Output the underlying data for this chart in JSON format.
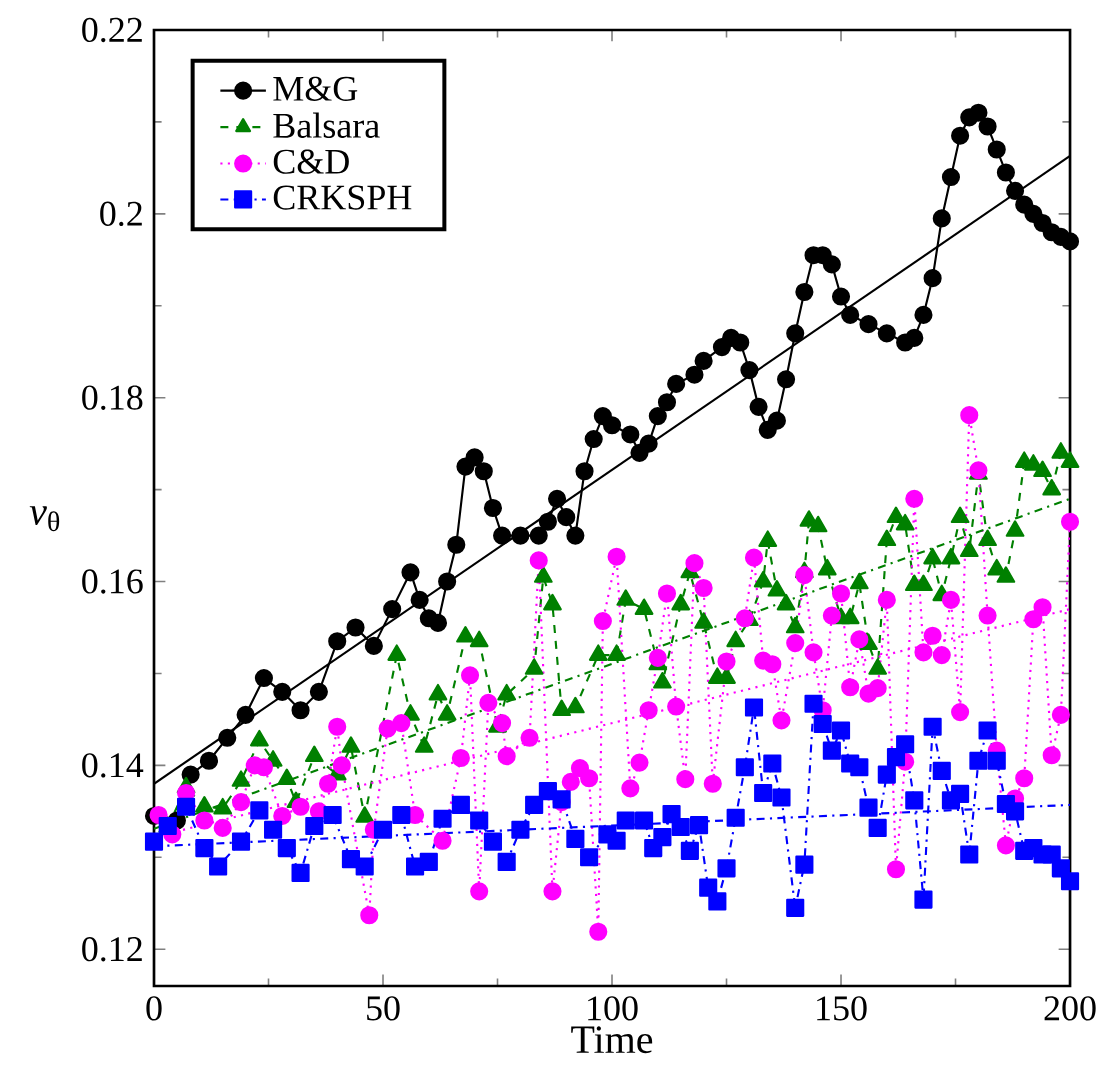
{
  "chart_data": {
    "type": "line",
    "xlabel": "Time",
    "ylabel": "*v*$_{θ}$",
    "xlim": [
      0,
      200
    ],
    "ylim": [
      0.116,
      0.22
    ],
    "xticks": [
      0,
      50,
      100,
      150,
      200
    ],
    "yticks": [
      0.12,
      0.14,
      0.16,
      0.18,
      0.2,
      0.22
    ],
    "grid": false,
    "legend": "top left",
    "series": [
      {
        "name": "M&G",
        "color": "#000000",
        "marker": "circle",
        "line_style": "solid",
        "x": [
          0,
          5,
          8,
          12,
          16,
          20,
          24,
          28,
          32,
          36,
          40,
          44,
          48,
          52,
          56,
          58,
          60,
          62,
          64,
          66,
          68,
          70,
          72,
          74,
          76,
          80,
          84,
          86,
          88,
          90,
          92,
          94,
          96,
          98,
          100,
          104,
          106,
          108,
          110,
          112,
          114,
          118,
          120,
          124,
          126,
          128,
          130,
          132,
          134,
          136,
          138,
          140,
          142,
          144,
          146,
          148,
          150,
          152,
          156,
          160,
          164,
          166,
          168,
          170,
          172,
          174,
          176,
          178,
          180,
          182,
          184,
          186,
          188,
          190,
          192,
          194,
          196,
          198,
          200
        ],
        "values": [
          0.1345,
          0.134,
          0.139,
          0.1405,
          0.143,
          0.1455,
          0.1495,
          0.148,
          0.146,
          0.148,
          0.1535,
          0.155,
          0.153,
          0.157,
          0.161,
          0.158,
          0.156,
          0.1555,
          0.16,
          0.164,
          0.1725,
          0.1735,
          0.172,
          0.168,
          0.165,
          0.165,
          0.165,
          0.1665,
          0.169,
          0.167,
          0.165,
          0.172,
          0.1755,
          0.178,
          0.177,
          0.176,
          0.174,
          0.175,
          0.178,
          0.1795,
          0.1815,
          0.1825,
          0.184,
          0.1855,
          0.1865,
          0.186,
          0.183,
          0.179,
          0.1765,
          0.1775,
          0.182,
          0.187,
          0.1915,
          0.1955,
          0.1955,
          0.1945,
          0.191,
          0.189,
          0.188,
          0.187,
          0.186,
          0.1865,
          0.189,
          0.193,
          0.1995,
          0.204,
          0.2085,
          0.2105,
          0.211,
          0.2095,
          0.207,
          0.2045,
          0.2025,
          0.201,
          0.2,
          0.199,
          0.198,
          0.1975,
          0.197
        ]
      },
      {
        "name": "Balsara",
        "color": "#008000",
        "marker": "triangle",
        "line_style": "dashed",
        "x": [
          3,
          7,
          11,
          15,
          19,
          23,
          26,
          29,
          31,
          35,
          40,
          43,
          46,
          53,
          56,
          59,
          62,
          64,
          68,
          71,
          75,
          77,
          83,
          85,
          87,
          89,
          92,
          97,
          101,
          103,
          107,
          110,
          111,
          115,
          117,
          120,
          123,
          125,
          127,
          130,
          133,
          134,
          136,
          138,
          140,
          142,
          143,
          145,
          147,
          150,
          152,
          154,
          156,
          158,
          160,
          162,
          164,
          166,
          168,
          170,
          172,
          174,
          176,
          178,
          180,
          182,
          184,
          186,
          188,
          190,
          192,
          194,
          196,
          198,
          200
        ],
        "values": [
          0.1333,
          0.1376,
          0.1355,
          0.1353,
          0.1383,
          0.1427,
          0.1405,
          0.1385,
          0.136,
          0.141,
          0.139,
          0.142,
          0.1344,
          0.152,
          0.1455,
          0.142,
          0.1477,
          0.1455,
          0.154,
          0.1535,
          0.1442,
          0.1477,
          0.1505,
          0.1605,
          0.1575,
          0.146,
          0.1463,
          0.152,
          0.152,
          0.158,
          0.157,
          0.151,
          0.149,
          0.1575,
          0.161,
          0.1555,
          0.1495,
          0.1495,
          0.1535,
          0.1558,
          0.16,
          0.1644,
          0.159,
          0.1575,
          0.155,
          0.161,
          0.1666,
          0.166,
          0.1613,
          0.156,
          0.156,
          0.1598,
          0.1532,
          0.1505,
          0.1645,
          0.167,
          0.1662,
          0.1596,
          0.1596,
          0.1625,
          0.1585,
          0.1625,
          0.167,
          0.1633,
          0.1717,
          0.1645,
          0.1613,
          0.1605,
          0.1655,
          0.173,
          0.1727,
          0.172,
          0.17,
          0.174,
          0.173
        ]
      },
      {
        "name": "C&D",
        "color": "#ff00ff",
        "marker": "circle",
        "line_style": "dotted",
        "x": [
          1,
          4,
          7,
          11,
          15,
          19,
          22,
          24,
          28,
          32,
          36,
          38,
          40,
          41,
          47,
          48,
          51,
          54,
          57,
          58,
          63,
          67,
          69,
          71,
          73,
          76,
          77,
          79,
          82,
          84,
          87,
          89,
          91,
          93,
          95,
          97,
          98,
          101,
          104,
          106,
          108,
          110,
          112,
          114,
          116,
          118,
          120,
          122,
          125,
          129,
          131,
          133,
          135,
          137,
          140,
          142,
          144,
          146,
          148,
          150,
          152,
          154,
          156,
          158,
          160,
          162,
          164,
          166,
          168,
          170,
          172,
          174,
          176,
          178,
          180,
          182,
          184,
          186,
          188,
          190,
          192,
          194,
          196,
          198,
          200
        ],
        "values": [
          0.1346,
          0.1325,
          0.137,
          0.134,
          0.1332,
          0.136,
          0.14,
          0.1398,
          0.1345,
          0.1355,
          0.135,
          0.138,
          0.1442,
          0.14,
          0.1237,
          0.133,
          0.144,
          0.1446,
          0.1346,
          null,
          0.1318,
          0.1408,
          0.1498,
          0.1263,
          0.1468,
          0.1446,
          0.141,
          null,
          0.143,
          0.1623,
          0.1263,
          0.136,
          0.1382,
          0.1397,
          0.1386,
          0.1219,
          0.1557,
          0.1627,
          0.1375,
          0.1403,
          0.146,
          0.1517,
          0.1587,
          0.1464,
          0.1385,
          0.162,
          0.1593,
          0.138,
          0.1513,
          0.156,
          0.1626,
          0.1514,
          0.151,
          0.1449,
          0.1533,
          0.1607,
          0.1523,
          0.146,
          0.1563,
          0.1587,
          0.1485,
          0.1537,
          0.1478,
          0.1484,
          0.158,
          0.1287,
          0.1404,
          0.169,
          0.1523,
          0.1541,
          0.152,
          0.158,
          0.1458,
          0.1781,
          0.1721,
          0.1563,
          0.1416,
          0.1313,
          0.1364,
          0.1386,
          0.1559,
          0.1572,
          0.1411,
          0.1455,
          0.1665
        ]
      },
      {
        "name": "CRKSPH",
        "color": "#0000ff",
        "marker": "square",
        "line_style": "dashdot",
        "x": [
          0,
          3,
          7,
          11,
          14,
          19,
          23,
          26,
          29,
          32,
          35,
          39,
          43,
          46,
          50,
          54,
          57,
          60,
          63,
          67,
          71,
          74,
          77,
          80,
          83,
          86,
          89,
          92,
          95,
          99,
          101,
          103,
          107,
          109,
          111,
          113,
          115,
          117,
          119,
          121,
          123,
          125,
          127,
          129,
          131,
          133,
          135,
          137,
          140,
          142,
          144,
          146,
          148,
          150,
          152,
          154,
          156,
          158,
          160,
          162,
          164,
          166,
          168,
          170,
          172,
          174,
          176,
          178,
          180,
          182,
          184,
          186,
          188,
          190,
          192,
          194,
          196,
          198,
          200
        ],
        "values": [
          0.1317,
          0.1334,
          0.1355,
          0.131,
          0.129,
          0.1317,
          0.1351,
          0.133,
          0.131,
          0.1283,
          0.1334,
          0.1346,
          0.1298,
          0.129,
          0.133,
          0.1346,
          0.129,
          0.1295,
          0.1342,
          0.1357,
          0.134,
          0.1317,
          0.1295,
          0.133,
          0.1357,
          0.1372,
          0.1363,
          0.132,
          0.13,
          0.1325,
          0.1318,
          0.134,
          0.134,
          0.131,
          0.1322,
          0.1347,
          0.1333,
          0.1307,
          0.1335,
          0.1267,
          0.1252,
          0.1288,
          0.1343,
          0.1398,
          0.1463,
          0.137,
          0.1402,
          0.1365,
          0.1245,
          0.1292,
          0.1467,
          0.1445,
          0.1416,
          0.1438,
          0.1402,
          0.1398,
          0.1354,
          0.1332,
          0.139,
          0.1409,
          0.1423,
          0.1362,
          0.1254,
          0.1442,
          0.1394,
          0.1362,
          0.1369,
          0.1303,
          0.1405,
          0.1438,
          0.1405,
          0.1358,
          0.135,
          0.1307,
          0.131,
          0.1303,
          0.1303,
          0.1288,
          0.1274
        ]
      },
      {
        "color": "#000000",
        "marker": "none",
        "line_style": "solid",
        "x": [
          0,
          200
        ],
        "values": [
          0.138,
          0.2063
        ]
      },
      {
        "color": "#008000",
        "marker": "none",
        "line_style": "dashdot",
        "x": [
          0,
          200
        ],
        "values": [
          0.1331,
          0.169
        ]
      },
      {
        "color": "#ff00ff",
        "marker": "none",
        "line_style": "dotted",
        "x": [
          0,
          200
        ],
        "values": [
          0.1322,
          0.157
        ]
      },
      {
        "color": "#0000ff",
        "marker": "none",
        "line_style": "dashdot",
        "x": [
          0,
          200
        ],
        "values": [
          0.1312,
          0.1357
        ]
      }
    ]
  }
}
